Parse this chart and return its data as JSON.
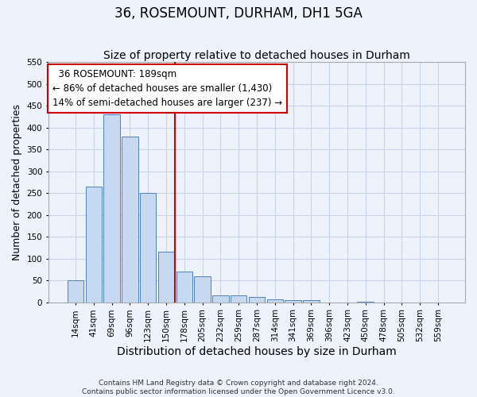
{
  "title": "36, ROSEMOUNT, DURHAM, DH1 5GA",
  "subtitle": "Size of property relative to detached houses in Durham",
  "xlabel": "Distribution of detached houses by size in Durham",
  "ylabel": "Number of detached properties",
  "categories": [
    "14sqm",
    "41sqm",
    "69sqm",
    "96sqm",
    "123sqm",
    "150sqm",
    "178sqm",
    "205sqm",
    "232sqm",
    "259sqm",
    "287sqm",
    "314sqm",
    "341sqm",
    "369sqm",
    "396sqm",
    "423sqm",
    "450sqm",
    "478sqm",
    "505sqm",
    "532sqm",
    "559sqm"
  ],
  "bar_heights": [
    50,
    265,
    430,
    380,
    250,
    115,
    70,
    60,
    15,
    15,
    12,
    7,
    5,
    5,
    0,
    0,
    2,
    0,
    0,
    0,
    0
  ],
  "bar_color": "#c6d9f0",
  "bar_edge_color": "#4f81bd",
  "vline_color": "#cc0000",
  "annotation_text": "  36 ROSEMOUNT: 189sqm\n← 86% of detached houses are smaller (1,430)\n14% of semi-detached houses are larger (237) →",
  "annotation_box_color": "#ffffff",
  "annotation_box_edge": "#cc0000",
  "ylim": [
    0,
    550
  ],
  "yticks": [
    0,
    50,
    100,
    150,
    200,
    250,
    300,
    350,
    400,
    450,
    500,
    550
  ],
  "grid_color": "#c8d4e8",
  "bg_color": "#eef2fa",
  "footer": "Contains HM Land Registry data © Crown copyright and database right 2024.\nContains public sector information licensed under the Open Government Licence v3.0.",
  "title_fontsize": 12,
  "subtitle_fontsize": 10,
  "xlabel_fontsize": 10,
  "ylabel_fontsize": 9,
  "tick_fontsize": 7.5,
  "annotation_fontsize": 8.5,
  "footer_fontsize": 6.5,
  "vline_index": 5.5
}
